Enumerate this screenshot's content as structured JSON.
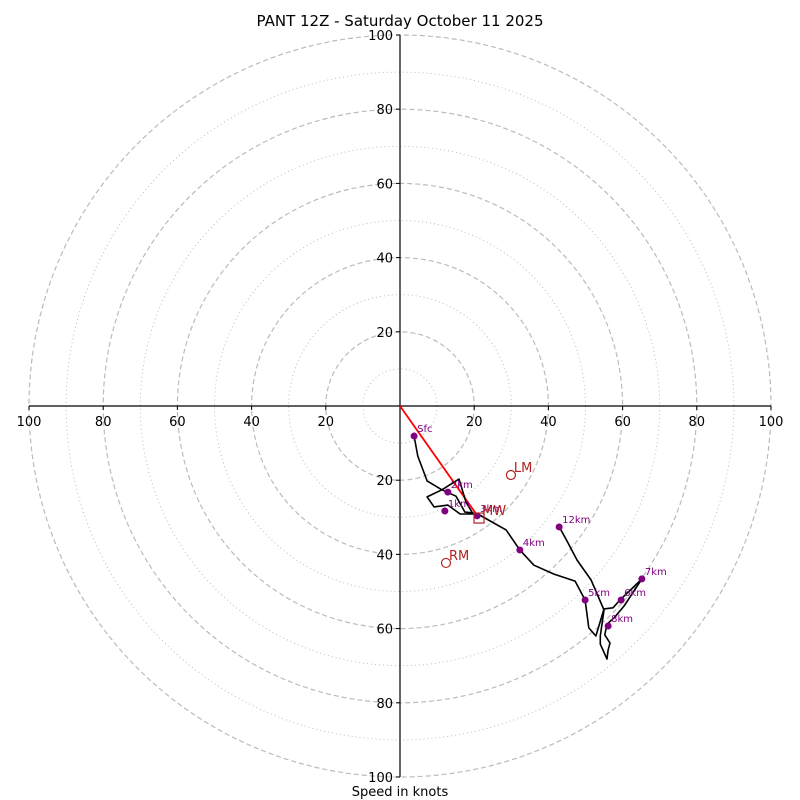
{
  "chart_data": {
    "type": "hodograph",
    "title": "PANT 12Z - Saturday October 11 2025",
    "xlabel": "Speed in knots",
    "ylabel": "",
    "range": [
      -100,
      100
    ],
    "ring_major": [
      20,
      40,
      60,
      80,
      100
    ],
    "ring_minor": [
      10,
      30,
      50,
      70,
      90
    ],
    "x_tick_labels": [
      "100",
      "80",
      "60",
      "40",
      "20",
      "20",
      "40",
      "60",
      "80",
      "100"
    ],
    "x_tick_values": [
      -100,
      -80,
      -60,
      -40,
      -20,
      20,
      40,
      60,
      80,
      100
    ],
    "y_tick_labels": [
      "100",
      "80",
      "60",
      "40",
      "20",
      "20",
      "40",
      "60",
      "80",
      "100"
    ],
    "y_tick_values": [
      100,
      80,
      60,
      40,
      20,
      -20,
      -40,
      -60,
      -80,
      -100
    ],
    "hodograph_line": {
      "color": "#000000",
      "points": [
        [
          3.8,
          -8.1
        ],
        [
          4.8,
          -13.5
        ],
        [
          7.3,
          -20.2
        ],
        [
          11.3,
          -22.6
        ],
        [
          15.9,
          -19.7
        ],
        [
          17.8,
          -25.9
        ],
        [
          19.7,
          -29.1
        ],
        [
          16.2,
          -29.1
        ],
        [
          12.9,
          -26.7
        ],
        [
          9.2,
          -27.2
        ],
        [
          7.3,
          -24.5
        ],
        [
          11.3,
          -22.6
        ],
        [
          15.1,
          -24.3
        ],
        [
          17.5,
          -28.6
        ],
        [
          19.4,
          -28.8
        ],
        [
          21.0,
          -29.1
        ],
        [
          24.3,
          -31.0
        ],
        [
          28.6,
          -33.4
        ],
        [
          32.3,
          -38.8
        ],
        [
          36.1,
          -42.9
        ],
        [
          41.5,
          -45.3
        ],
        [
          47.2,
          -47.2
        ],
        [
          49.9,
          -52.3
        ],
        [
          50.9,
          -59.8
        ],
        [
          52.8,
          -62.0
        ],
        [
          55.0,
          -54.7
        ],
        [
          57.4,
          -54.4
        ],
        [
          59.3,
          -52.3
        ],
        [
          65.2,
          -46.6
        ],
        [
          60.4,
          -53.9
        ],
        [
          57.7,
          -57.1
        ],
        [
          55.8,
          -58.8
        ],
        [
          55.2,
          -61.7
        ],
        [
          56.6,
          -63.9
        ],
        [
          56.1,
          -65.8
        ],
        [
          55.8,
          -68.2
        ],
        [
          54.0,
          -64.2
        ],
        [
          54.0,
          -62.0
        ],
        [
          55.0,
          -55.0
        ],
        [
          51.5,
          -46.9
        ],
        [
          47.7,
          -41.5
        ],
        [
          44.7,
          -35.8
        ],
        [
          42.9,
          -32.6
        ]
      ]
    },
    "height_markers": [
      {
        "label": "Sfc",
        "u": 3.8,
        "v": -8.1
      },
      {
        "label": "1km",
        "u": 12.1,
        "v": -28.3
      },
      {
        "label": "2km",
        "u": 12.9,
        "v": -23.2
      },
      {
        "label": "3km",
        "u": 20.8,
        "v": -29.6
      },
      {
        "label": "4km",
        "u": 32.3,
        "v": -38.8
      },
      {
        "label": "5km",
        "u": 49.9,
        "v": -52.3
      },
      {
        "label": "6km",
        "u": 59.6,
        "v": -52.3
      },
      {
        "label": "7km",
        "u": 65.2,
        "v": -46.6
      },
      {
        "label": "8km",
        "u": 56.1,
        "v": -59.3
      },
      {
        "label": "12km",
        "u": 42.9,
        "v": -32.6
      }
    ],
    "storm_motion": [
      {
        "label": "LM",
        "u": 29.9,
        "v": -18.6,
        "marker": "circle"
      },
      {
        "label": "RM",
        "u": 12.4,
        "v": -42.3,
        "marker": "circle"
      },
      {
        "label": "MW",
        "u": 21.3,
        "v": -30.2,
        "marker": "square"
      }
    ],
    "shear_vector": {
      "from": [
        0,
        0
      ],
      "to": [
        21.3,
        -30.2
      ],
      "color": "#ff0000"
    },
    "colors": {
      "axis": "#000000",
      "grid": "#bbbbbb",
      "marker": "#800080",
      "storm_motion": "#b22222",
      "shear": "#ff0000"
    }
  }
}
